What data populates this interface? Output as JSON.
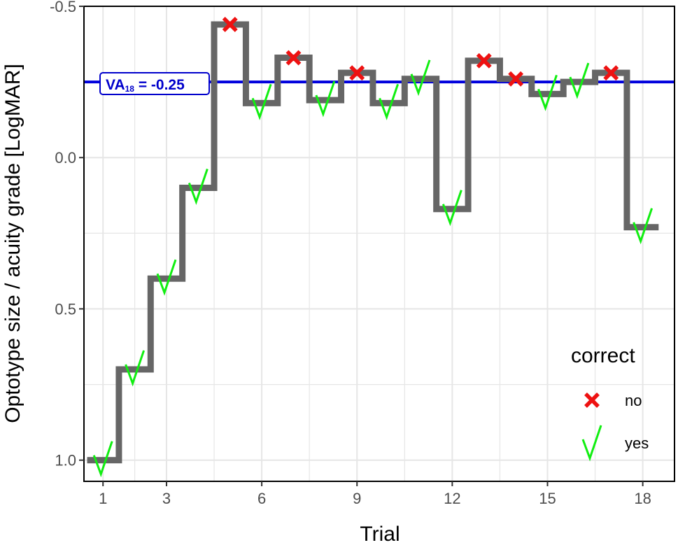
{
  "chart_data": {
    "type": "line",
    "subtype": "step",
    "xlabel": "Trial",
    "ylabel": "Optotype size / acuity grade [LogMAR]",
    "x_ticks": [
      1,
      3,
      6,
      9,
      12,
      15,
      18
    ],
    "y_ticks": [
      -0.5,
      0.0,
      0.5,
      1.0
    ],
    "y_tick_labels": [
      "-0.5",
      "0.0",
      "0.5",
      "1.0"
    ],
    "xlim": [
      0.4,
      19.0
    ],
    "ylim": [
      -0.5,
      1.07
    ],
    "y_reversed": true,
    "grid": true,
    "series": [
      {
        "x": [
          1,
          2,
          3,
          4,
          5,
          6,
          7,
          8,
          9,
          10,
          11,
          12,
          13,
          14,
          15,
          16,
          17,
          18
        ],
        "y": [
          1.0,
          0.7,
          0.4,
          0.1,
          -0.44,
          -0.18,
          -0.33,
          -0.19,
          -0.28,
          -0.18,
          -0.26,
          0.17,
          -0.32,
          -0.26,
          -0.21,
          -0.25,
          -0.28,
          0.23
        ],
        "correct": [
          "yes",
          "yes",
          "yes",
          "yes",
          "no",
          "yes",
          "no",
          "yes",
          "no",
          "yes",
          "yes",
          "yes",
          "no",
          "no",
          "yes",
          "yes",
          "no",
          "yes"
        ]
      }
    ],
    "reference_line": {
      "y": -0.25,
      "label_main": "VA",
      "label_sub": "18",
      "label_rest": " = -0.25",
      "color": "#0000dd"
    },
    "legend": {
      "title": "correct",
      "position": "bottom-right",
      "entries": [
        {
          "key": "no",
          "label": "no",
          "marker": "x-mark",
          "color": "#ee1111"
        },
        {
          "key": "yes",
          "label": "yes",
          "marker": "check-mark",
          "color": "#11ee11"
        }
      ]
    },
    "colors": {
      "step_line": "#666666",
      "grid": "#e6e6e6",
      "no": "#ee1111",
      "yes": "#11ee11"
    }
  }
}
